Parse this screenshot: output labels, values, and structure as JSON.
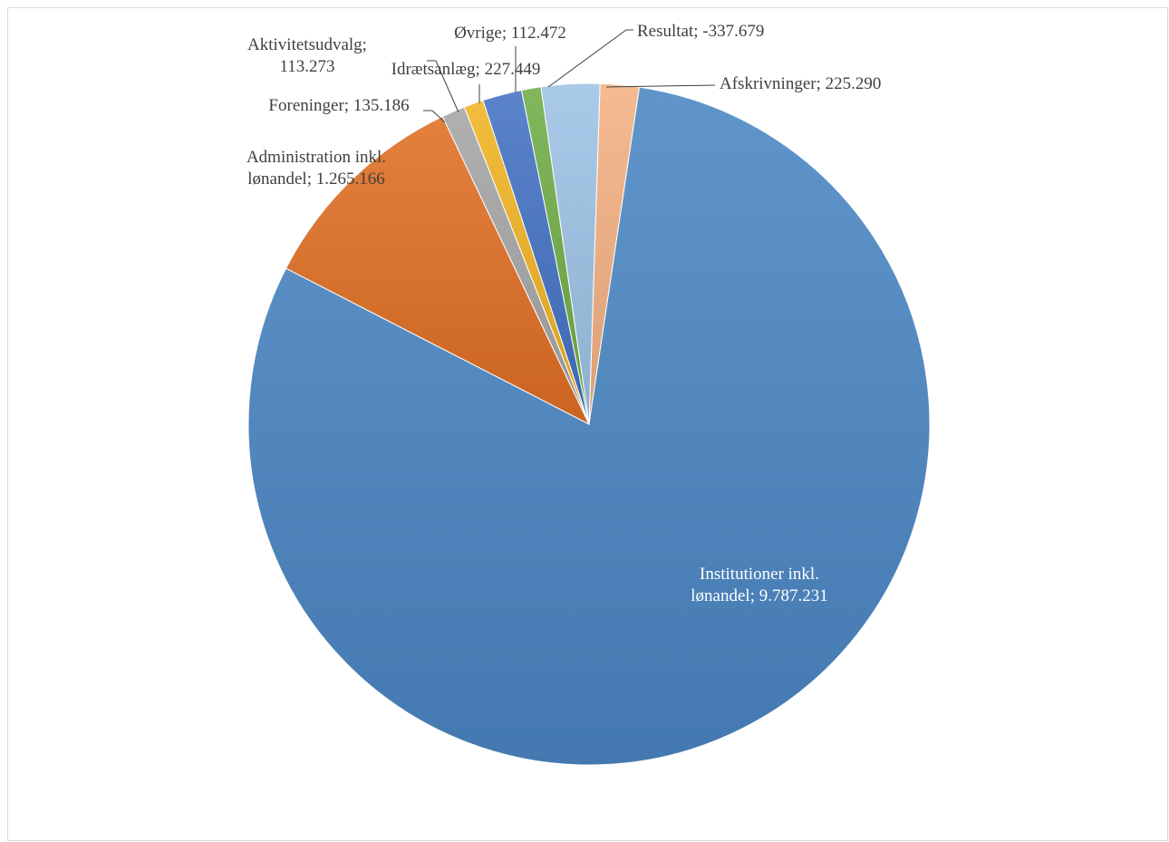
{
  "chart_data": {
    "type": "pie",
    "title": "",
    "legend": "none",
    "slices": [
      {
        "category": "Afskrivninger",
        "value": 225290,
        "color": "#f4b183",
        "label": [
          "Afskrivninger; 225.290"
        ]
      },
      {
        "category": "Institutioner inkl. lønandel",
        "value": 9787231,
        "color": "#4a86c4",
        "label": [
          "Institutioner inkl.",
          "lønandel; 9.787.231"
        ]
      },
      {
        "category": "Administration inkl. lønandel",
        "value": 1265166,
        "color": "#e06f24",
        "label": [
          "Administration inkl.",
          "lønandel; 1.265.166"
        ]
      },
      {
        "category": "Foreninger",
        "value": 135186,
        "color": "#a5a5a5",
        "label": [
          "Foreninger; 135.186"
        ]
      },
      {
        "category": "Aktivitetsudvalg",
        "value": 113273,
        "color": "#f0b323",
        "label": [
          "Aktivitetsudvalg;",
          "113.273"
        ]
      },
      {
        "category": "Idrætsanlæg",
        "value": 227449,
        "color": "#4472c4",
        "label": [
          "Idrætsanlæg; 227.449"
        ]
      },
      {
        "category": "Øvrige",
        "value": 112472,
        "color": "#70ad47",
        "label": [
          "Øvrige; 112.472"
        ]
      },
      {
        "category": "Resultat",
        "value": -337679,
        "color": "#9dc3e6",
        "label": [
          "Resultat; -337.679"
        ]
      }
    ]
  }
}
